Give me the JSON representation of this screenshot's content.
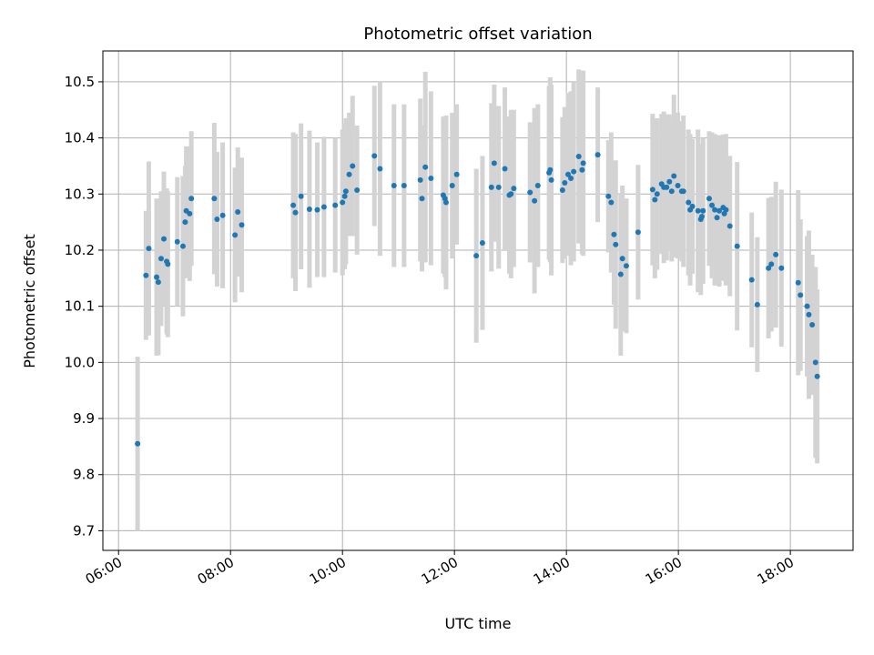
{
  "chart_data": {
    "type": "scatter",
    "title": "Photometric offset variation",
    "xlabel": "UTC time",
    "ylabel": "Photometric offset",
    "x_unit": "hours UTC",
    "xlim": [
      5.72,
      19.12
    ],
    "ylim": [
      9.665,
      10.555
    ],
    "x_ticks": [
      {
        "value": 6,
        "label": "06:00"
      },
      {
        "value": 8,
        "label": "08:00"
      },
      {
        "value": 10,
        "label": "10:00"
      },
      {
        "value": 12,
        "label": "12:00"
      },
      {
        "value": 14,
        "label": "14:00"
      },
      {
        "value": 16,
        "label": "16:00"
      },
      {
        "value": 18,
        "label": "18:00"
      }
    ],
    "y_ticks": [
      {
        "value": 9.7,
        "label": "9.7"
      },
      {
        "value": 9.8,
        "label": "9.8"
      },
      {
        "value": 9.9,
        "label": "9.9"
      },
      {
        "value": 10.0,
        "label": "10.0"
      },
      {
        "value": 10.1,
        "label": "10.1"
      },
      {
        "value": 10.2,
        "label": "10.2"
      },
      {
        "value": 10.3,
        "label": "10.3"
      },
      {
        "value": 10.4,
        "label": "10.4"
      },
      {
        "value": 10.5,
        "label": "10.5"
      }
    ],
    "grid": true,
    "colors": {
      "marker": "#1f77b4",
      "errorbar": "#d3d3d3",
      "grid": "#b0b0b0"
    },
    "points": [
      [
        6.34,
        9.855,
        0.155
      ],
      [
        6.49,
        10.155,
        0.115
      ],
      [
        6.54,
        10.203,
        0.155
      ],
      [
        6.68,
        10.152,
        0.14
      ],
      [
        6.71,
        10.143,
        0.13
      ],
      [
        6.76,
        10.185,
        0.12
      ],
      [
        6.81,
        10.22,
        0.12
      ],
      [
        6.86,
        10.18,
        0.13
      ],
      [
        6.88,
        10.175,
        0.13
      ],
      [
        7.05,
        10.215,
        0.115
      ],
      [
        7.15,
        10.207,
        0.125
      ],
      [
        7.19,
        10.25,
        0.1
      ],
      [
        7.21,
        10.27,
        0.115
      ],
      [
        7.27,
        10.265,
        0.12
      ],
      [
        7.3,
        10.292,
        0.12
      ],
      [
        7.71,
        10.292,
        0.135
      ],
      [
        7.76,
        10.255,
        0.12
      ],
      [
        7.86,
        10.262,
        0.13
      ],
      [
        8.08,
        10.227,
        0.12
      ],
      [
        8.13,
        10.268,
        0.115
      ],
      [
        8.2,
        10.245,
        0.12
      ],
      [
        9.12,
        10.28,
        0.13
      ],
      [
        9.16,
        10.267,
        0.14
      ],
      [
        9.26,
        10.296,
        0.13
      ],
      [
        9.41,
        10.273,
        0.14
      ],
      [
        9.55,
        10.272,
        0.12
      ],
      [
        9.67,
        10.277,
        0.125
      ],
      [
        9.87,
        10.28,
        0.12
      ],
      [
        10.0,
        10.285,
        0.13
      ],
      [
        10.04,
        10.296,
        0.13
      ],
      [
        10.06,
        10.305,
        0.13
      ],
      [
        10.12,
        10.335,
        0.11
      ],
      [
        10.18,
        10.35,
        0.125
      ],
      [
        10.26,
        10.307,
        0.115
      ],
      [
        10.57,
        10.368,
        0.125
      ],
      [
        10.67,
        10.345,
        0.155
      ],
      [
        10.92,
        10.315,
        0.145
      ],
      [
        11.1,
        10.315,
        0.145
      ],
      [
        11.39,
        10.325,
        0.145
      ],
      [
        11.42,
        10.292,
        0.13
      ],
      [
        11.48,
        10.348,
        0.17
      ],
      [
        11.58,
        10.328,
        0.155
      ],
      [
        11.8,
        10.298,
        0.14
      ],
      [
        11.83,
        10.292,
        0.14
      ],
      [
        11.85,
        10.285,
        0.155
      ],
      [
        11.96,
        10.315,
        0.13
      ],
      [
        12.04,
        10.335,
        0.125
      ],
      [
        12.39,
        10.19,
        0.155
      ],
      [
        12.5,
        10.213,
        0.155
      ],
      [
        12.66,
        10.312,
        0.15
      ],
      [
        12.71,
        10.355,
        0.14
      ],
      [
        12.79,
        10.312,
        0.145
      ],
      [
        12.9,
        10.345,
        0.145
      ],
      [
        12.98,
        10.298,
        0.14
      ],
      [
        13.01,
        10.3,
        0.15
      ],
      [
        13.06,
        10.31,
        0.14
      ],
      [
        13.35,
        10.303,
        0.125
      ],
      [
        13.43,
        10.288,
        0.165
      ],
      [
        13.49,
        10.315,
        0.145
      ],
      [
        13.69,
        10.338,
        0.155
      ],
      [
        13.71,
        10.343,
        0.165
      ],
      [
        13.73,
        10.325,
        0.17
      ],
      [
        13.93,
        10.307,
        0.13
      ],
      [
        13.97,
        10.32,
        0.135
      ],
      [
        14.03,
        10.335,
        0.145
      ],
      [
        14.08,
        10.328,
        0.155
      ],
      [
        14.13,
        10.34,
        0.16
      ],
      [
        14.22,
        10.367,
        0.155
      ],
      [
        14.28,
        10.343,
        0.15
      ],
      [
        14.3,
        10.355,
        0.165
      ],
      [
        14.56,
        10.37,
        0.12
      ],
      [
        14.75,
        10.296,
        0.1
      ],
      [
        14.8,
        10.285,
        0.125
      ],
      [
        14.85,
        10.228,
        0.125
      ],
      [
        14.88,
        10.21,
        0.15
      ],
      [
        14.97,
        10.157,
        0.145
      ],
      [
        15.0,
        10.185,
        0.13
      ],
      [
        15.07,
        10.172,
        0.12
      ],
      [
        15.28,
        10.232,
        0.12
      ],
      [
        15.54,
        10.308,
        0.135
      ],
      [
        15.58,
        10.29,
        0.14
      ],
      [
        15.62,
        10.3,
        0.135
      ],
      [
        15.7,
        10.318,
        0.125
      ],
      [
        15.74,
        10.312,
        0.135
      ],
      [
        15.79,
        10.312,
        0.13
      ],
      [
        15.84,
        10.322,
        0.12
      ],
      [
        15.88,
        10.305,
        0.125
      ],
      [
        15.92,
        10.332,
        0.145
      ],
      [
        15.99,
        10.315,
        0.13
      ],
      [
        16.06,
        10.305,
        0.125
      ],
      [
        16.09,
        10.305,
        0.135
      ],
      [
        16.18,
        10.285,
        0.13
      ],
      [
        16.21,
        10.272,
        0.135
      ],
      [
        16.25,
        10.278,
        0.12
      ],
      [
        16.35,
        10.27,
        0.145
      ],
      [
        16.4,
        10.255,
        0.135
      ],
      [
        16.42,
        10.26,
        0.12
      ],
      [
        16.44,
        10.27,
        0.13
      ],
      [
        16.55,
        10.292,
        0.12
      ],
      [
        16.6,
        10.28,
        0.13
      ],
      [
        16.65,
        10.272,
        0.135
      ],
      [
        16.69,
        10.258,
        0.12
      ],
      [
        16.73,
        10.27,
        0.135
      ],
      [
        16.8,
        10.276,
        0.13
      ],
      [
        16.82,
        10.265,
        0.12
      ],
      [
        16.85,
        10.272,
        0.135
      ],
      [
        16.92,
        10.243,
        0.125
      ],
      [
        17.05,
        10.207,
        0.15
      ],
      [
        17.31,
        10.147,
        0.12
      ],
      [
        17.41,
        10.103,
        0.12
      ],
      [
        17.61,
        10.168,
        0.125
      ],
      [
        17.66,
        10.175,
        0.12
      ],
      [
        17.74,
        10.192,
        0.13
      ],
      [
        17.84,
        10.168,
        0.14
      ],
      [
        18.14,
        10.142,
        0.165
      ],
      [
        18.18,
        10.12,
        0.135
      ],
      [
        18.3,
        10.1,
        0.125
      ],
      [
        18.33,
        10.085,
        0.15
      ],
      [
        18.39,
        10.067,
        0.125
      ],
      [
        18.45,
        10.0,
        0.17
      ],
      [
        18.48,
        9.975,
        0.155
      ]
    ]
  }
}
